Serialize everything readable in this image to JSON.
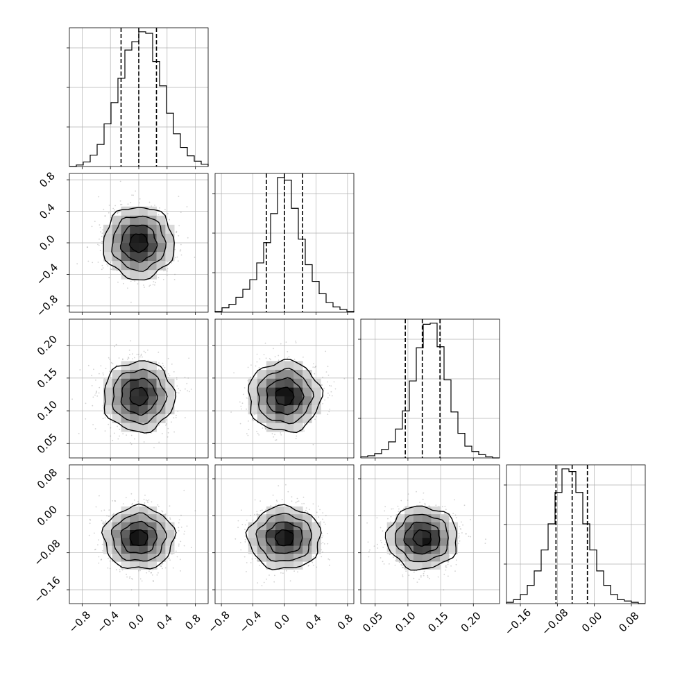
{
  "chart_data": {
    "type": "corner",
    "parameters": [
      {
        "index": 0,
        "range": [
          -0.98,
          0.98
        ],
        "ticks": [
          -0.8,
          -0.4,
          0.0,
          0.4,
          0.8
        ],
        "tick_labels": [
          "−0.8",
          "−0.4",
          "0.0",
          "0.4",
          "0.8"
        ],
        "quantiles": [
          -0.25,
          0.0,
          0.25
        ],
        "histogram": {
          "bin_start": -0.98,
          "bin_width": 0.098,
          "counts": [
            0,
            2,
            6,
            15,
            29,
            56,
            84,
            116,
            153,
            164,
            177,
            175,
            138,
            106,
            70,
            43,
            25,
            14,
            7,
            3
          ]
        }
      },
      {
        "index": 1,
        "range": [
          -0.88,
          0.88
        ],
        "ticks": [
          -0.8,
          -0.4,
          0.0,
          0.4,
          0.8
        ],
        "tick_labels": [
          "−0.8",
          "−0.4",
          "0.0",
          "0.4",
          "0.8"
        ],
        "quantiles": [
          -0.23,
          0.0,
          0.23
        ],
        "histogram": {
          "bin_start": -0.88,
          "bin_width": 0.088,
          "counts": [
            1,
            5,
            9,
            17,
            26,
            37,
            56,
            79,
            112,
            153,
            150,
            118,
            83,
            54,
            35,
            21,
            11,
            6,
            3,
            1
          ]
        }
      },
      {
        "index": 2,
        "range": [
          0.028,
          0.24
        ],
        "ticks": [
          0.05,
          0.1,
          0.15,
          0.2
        ],
        "tick_labels": [
          "0.05",
          "0.10",
          "0.15",
          "0.20"
        ],
        "quantiles": [
          0.096,
          0.122,
          0.149
        ],
        "histogram": {
          "bin_start": 0.028,
          "bin_width": 0.0106,
          "counts": [
            1,
            2,
            4,
            8,
            15,
            27,
            44,
            72,
            103,
            125,
            126,
            104,
            73,
            43,
            23,
            11,
            6,
            3,
            1,
            0
          ]
        }
      },
      {
        "index": 3,
        "range": [
          -0.19,
          0.11
        ],
        "ticks": [
          -0.16,
          -0.08,
          0.0,
          0.08
        ],
        "tick_labels": [
          "−0.16",
          "−0.08",
          "0.00",
          "0.08"
        ],
        "quantiles": [
          -0.083,
          -0.048,
          -0.015
        ],
        "histogram": {
          "bin_start": -0.19,
          "bin_width": 0.015,
          "counts": [
            1,
            3,
            7,
            14,
            25,
            41,
            61,
            85,
            103,
            101,
            85,
            61,
            41,
            25,
            14,
            7,
            3,
            2,
            1,
            0
          ]
        }
      }
    ],
    "pairs": [
      {
        "x": 0,
        "y": 1,
        "center": [
          0.0,
          0.0
        ],
        "sigma": [
          0.25,
          0.23
        ]
      },
      {
        "x": 0,
        "y": 2,
        "center": [
          0.0,
          0.122
        ],
        "sigma": [
          0.25,
          0.027
        ]
      },
      {
        "x": 1,
        "y": 2,
        "center": [
          0.0,
          0.122
        ],
        "sigma": [
          0.23,
          0.027
        ]
      },
      {
        "x": 0,
        "y": 3,
        "center": [
          0.0,
          -0.048
        ],
        "sigma": [
          0.25,
          0.034
        ]
      },
      {
        "x": 1,
        "y": 3,
        "center": [
          0.0,
          -0.048
        ],
        "sigma": [
          0.23,
          0.034
        ]
      },
      {
        "x": 2,
        "y": 3,
        "center": [
          0.122,
          -0.048
        ],
        "sigma": [
          0.027,
          0.034
        ]
      }
    ],
    "contour_levels_sigma": [
      0.5,
      1.0,
      1.5,
      2.0
    ],
    "grid": true,
    "colors": {
      "line": "#000000",
      "grid": "#b0b0b0",
      "points": "#7f7f7f"
    }
  }
}
